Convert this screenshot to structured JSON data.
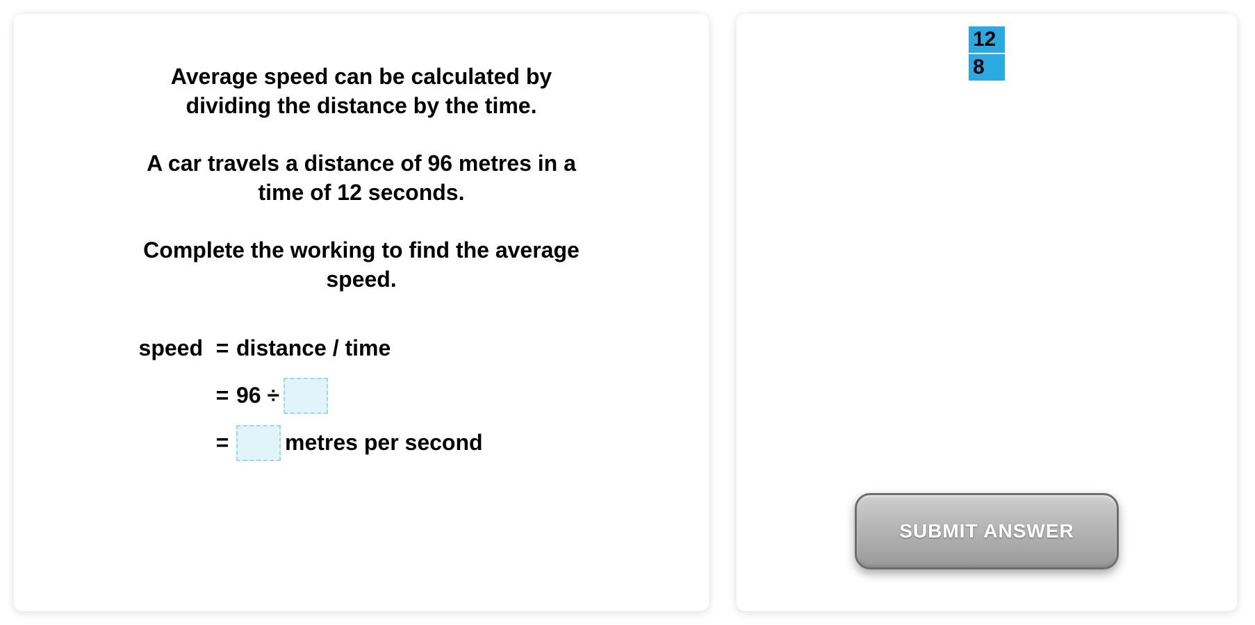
{
  "question": {
    "intro_line1": "Average speed can be calculated by",
    "intro_line2": "dividing the distance by the time.",
    "scenario_line1": "A car travels a distance of 96 metres in a",
    "scenario_line2": "time of 12 seconds.",
    "instruction_line1": "Complete the working to find the average",
    "instruction_line2": "speed.",
    "working": {
      "row1_left": "speed",
      "row1_eq": "=",
      "row1_right": "distance / time",
      "row2_eq": "=",
      "row2_num": "96 ÷",
      "row3_eq": "=",
      "row3_unit": "metres per second"
    }
  },
  "tiles": {
    "options": [
      "12",
      "8"
    ]
  },
  "submit_label": "SUBMIT ANSWER",
  "colors": {
    "tile_bg": "#29abe2",
    "slot_bg": "#e0f4fa",
    "slot_border": "#9bd9e8",
    "text": "#000000",
    "panel_bg": "#ffffff"
  }
}
